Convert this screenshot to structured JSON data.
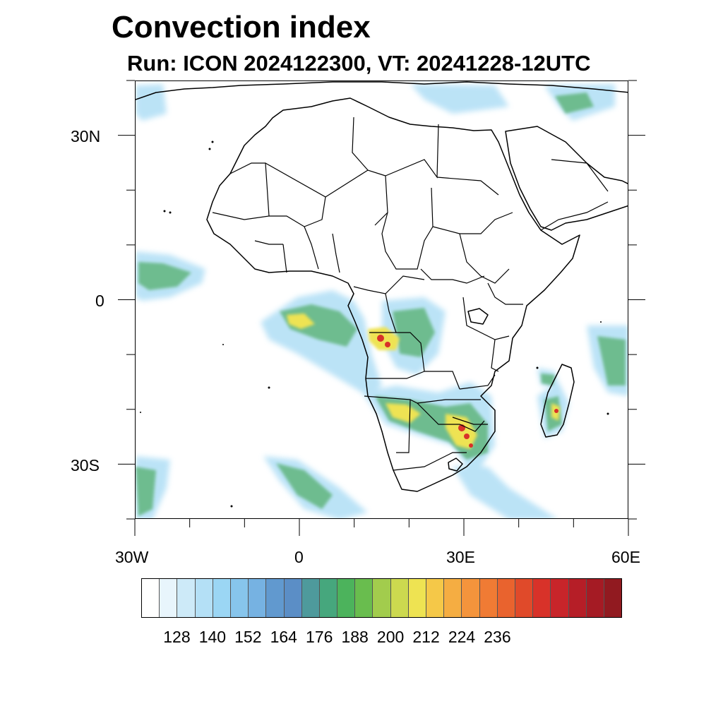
{
  "title": "Convection index",
  "subtitle": "Run: ICON 2024122300,  VT: 20241228-12UTC",
  "map": {
    "type": "filled-contour map",
    "region": "Africa",
    "lon_range": [
      -30,
      60
    ],
    "lat_range": [
      -40,
      40
    ],
    "lon_ticks": [
      "30W",
      "0",
      "30E",
      "60E"
    ],
    "lat_ticks": [
      "30N",
      "0",
      "30S"
    ],
    "boundaries": "country borders and coastlines"
  },
  "colorbar": {
    "labels": [
      "128",
      "140",
      "152",
      "164",
      "176",
      "188",
      "200",
      "212",
      "224",
      "236"
    ],
    "colors": [
      "#ffffff",
      "#e8f5fc",
      "#cdeaf8",
      "#b4e0f6",
      "#9bd6f4",
      "#87c5ec",
      "#76b2e2",
      "#6199cf",
      "#5b8ec6",
      "#4e9a9c",
      "#46a77d",
      "#4cb35c",
      "#69bd4e",
      "#a2cc4d",
      "#ccd94f",
      "#eee352",
      "#f5c848",
      "#f5ad42",
      "#f4943c",
      "#f07b34",
      "#e9632e",
      "#e04a2a",
      "#d83229",
      "#c8252a",
      "#b61e27",
      "#a51b24",
      "#911a20"
    ]
  }
}
